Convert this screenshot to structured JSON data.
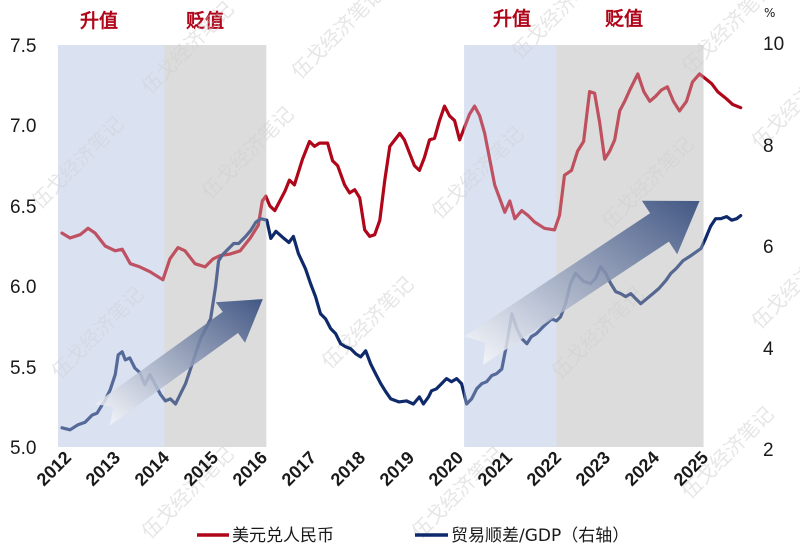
{
  "chart_data": {
    "type": "line",
    "title": "",
    "xlabel": "",
    "ylabel": "美元兑人民币",
    "ylabel_right": "贸易顺差/GDP（右轴）",
    "right_axis_unit": "%",
    "x_ticks": [
      "2012",
      "2013",
      "2014",
      "2015",
      "2016",
      "2017",
      "2018",
      "2019",
      "2020",
      "2021",
      "2022",
      "2023",
      "2024",
      "2025"
    ],
    "ylim": [
      5.0,
      7.5
    ],
    "y_ticks": [
      "7.5",
      "7.0",
      "6.5",
      "6.0",
      "5.5",
      "5.0"
    ],
    "ylim_right": [
      2,
      10
    ],
    "y_ticks_right": [
      "10",
      "8",
      "6",
      "4",
      "2"
    ],
    "grid": false,
    "legend_position": "bottom",
    "shaded_regions": [
      {
        "label": "升值",
        "start": 2011.92,
        "end": 2014.04,
        "color": "#dbe1f0"
      },
      {
        "label": "贬值",
        "start": 2014.04,
        "end": 2016.07,
        "color": "#dcdcdc"
      },
      {
        "label": "升值",
        "start": 2020.01,
        "end": 2021.85,
        "color": "#dbe1f0"
      },
      {
        "label": "贬值",
        "start": 2021.85,
        "end": 2024.78,
        "color": "#dcdcdc"
      }
    ],
    "annotations": [
      {
        "type": "arrow",
        "note": "upward trend arrow",
        "from": [
          2012.8,
          5.2
        ],
        "to": [
          2016.0,
          5.92
        ]
      },
      {
        "type": "arrow",
        "note": "upward trend arrow",
        "from": [
          2020.2,
          5.6
        ],
        "to": [
          2024.7,
          6.53
        ]
      }
    ],
    "series": [
      {
        "name": "美元兑人民币",
        "axis": "left",
        "color": "#b0061a",
        "points": [
          [
            2012.0,
            6.33
          ],
          [
            2012.16,
            6.3
          ],
          [
            2012.36,
            6.32
          ],
          [
            2012.52,
            6.36
          ],
          [
            2012.66,
            6.33
          ],
          [
            2012.86,
            6.25
          ],
          [
            2013.06,
            6.22
          ],
          [
            2013.2,
            6.23
          ],
          [
            2013.36,
            6.14
          ],
          [
            2013.55,
            6.12
          ],
          [
            2013.75,
            6.09
          ],
          [
            2014.01,
            6.04
          ],
          [
            2014.15,
            6.17
          ],
          [
            2014.31,
            6.24
          ],
          [
            2014.45,
            6.22
          ],
          [
            2014.65,
            6.14
          ],
          [
            2014.85,
            6.12
          ],
          [
            2015.01,
            6.17
          ],
          [
            2015.15,
            6.19
          ],
          [
            2015.35,
            6.2
          ],
          [
            2015.55,
            6.22
          ],
          [
            2015.75,
            6.3
          ],
          [
            2015.91,
            6.38
          ],
          [
            2015.99,
            6.53
          ],
          [
            2016.06,
            6.56
          ],
          [
            2016.14,
            6.5
          ],
          [
            2016.24,
            6.47
          ],
          [
            2016.44,
            6.59
          ],
          [
            2016.53,
            6.66
          ],
          [
            2016.63,
            6.63
          ],
          [
            2016.79,
            6.79
          ],
          [
            2016.93,
            6.9
          ],
          [
            2017.03,
            6.87
          ],
          [
            2017.13,
            6.89
          ],
          [
            2017.29,
            6.89
          ],
          [
            2017.39,
            6.78
          ],
          [
            2017.49,
            6.75
          ],
          [
            2017.63,
            6.63
          ],
          [
            2017.73,
            6.58
          ],
          [
            2017.83,
            6.6
          ],
          [
            2017.93,
            6.55
          ],
          [
            2018.03,
            6.35
          ],
          [
            2018.13,
            6.31
          ],
          [
            2018.23,
            6.32
          ],
          [
            2018.33,
            6.41
          ],
          [
            2018.43,
            6.66
          ],
          [
            2018.53,
            6.87
          ],
          [
            2018.63,
            6.91
          ],
          [
            2018.73,
            6.95
          ],
          [
            2018.82,
            6.91
          ],
          [
            2019.02,
            6.75
          ],
          [
            2019.12,
            6.72
          ],
          [
            2019.22,
            6.8
          ],
          [
            2019.32,
            6.91
          ],
          [
            2019.42,
            6.92
          ],
          [
            2019.52,
            7.03
          ],
          [
            2019.62,
            7.12
          ],
          [
            2019.72,
            7.06
          ],
          [
            2019.82,
            7.03
          ],
          [
            2019.92,
            6.91
          ],
          [
            2020.02,
            6.99
          ],
          [
            2020.12,
            7.07
          ],
          [
            2020.22,
            7.12
          ],
          [
            2020.32,
            7.06
          ],
          [
            2020.42,
            6.95
          ],
          [
            2020.52,
            6.79
          ],
          [
            2020.62,
            6.63
          ],
          [
            2020.82,
            6.46
          ],
          [
            2020.92,
            6.53
          ],
          [
            2021.02,
            6.42
          ],
          [
            2021.16,
            6.47
          ],
          [
            2021.28,
            6.44
          ],
          [
            2021.41,
            6.4
          ],
          [
            2021.61,
            6.36
          ],
          [
            2021.81,
            6.35
          ],
          [
            2021.91,
            6.44
          ],
          [
            2022.01,
            6.69
          ],
          [
            2022.15,
            6.72
          ],
          [
            2022.27,
            6.84
          ],
          [
            2022.39,
            6.9
          ],
          [
            2022.51,
            7.21
          ],
          [
            2022.61,
            7.2
          ],
          [
            2022.71,
            7.02
          ],
          [
            2022.81,
            6.79
          ],
          [
            2022.91,
            6.84
          ],
          [
            2023.01,
            6.91
          ],
          [
            2023.11,
            7.09
          ],
          [
            2023.21,
            7.15
          ],
          [
            2023.31,
            7.22
          ],
          [
            2023.47,
            7.32
          ],
          [
            2023.59,
            7.21
          ],
          [
            2023.71,
            7.15
          ],
          [
            2023.82,
            7.18
          ],
          [
            2023.94,
            7.22
          ],
          [
            2024.06,
            7.24
          ],
          [
            2024.18,
            7.15
          ],
          [
            2024.3,
            7.09
          ],
          [
            2024.44,
            7.15
          ],
          [
            2024.56,
            7.27
          ],
          [
            2024.7,
            7.32
          ],
          [
            2024.82,
            7.29
          ],
          [
            2024.94,
            7.26
          ],
          [
            2025.06,
            7.21
          ],
          [
            2025.22,
            7.17
          ],
          [
            2025.36,
            7.13
          ],
          [
            2025.52,
            7.11
          ]
        ]
      },
      {
        "name": "贸易顺差/GDP（右轴）",
        "axis": "right",
        "color": "#0f2a6b",
        "points": [
          [
            2012.0,
            2.4
          ],
          [
            2012.16,
            2.36
          ],
          [
            2012.32,
            2.46
          ],
          [
            2012.46,
            2.51
          ],
          [
            2012.6,
            2.65
          ],
          [
            2012.7,
            2.69
          ],
          [
            2012.86,
            2.95
          ],
          [
            2012.96,
            3.15
          ],
          [
            2013.06,
            3.45
          ],
          [
            2013.12,
            3.84
          ],
          [
            2013.2,
            3.9
          ],
          [
            2013.26,
            3.74
          ],
          [
            2013.35,
            3.78
          ],
          [
            2013.45,
            3.58
          ],
          [
            2013.55,
            3.49
          ],
          [
            2013.65,
            3.25
          ],
          [
            2013.75,
            3.45
          ],
          [
            2013.86,
            3.25
          ],
          [
            2013.96,
            3.06
          ],
          [
            2014.06,
            2.93
          ],
          [
            2014.16,
            2.97
          ],
          [
            2014.26,
            2.87
          ],
          [
            2014.36,
            3.07
          ],
          [
            2014.46,
            3.27
          ],
          [
            2014.56,
            3.56
          ],
          [
            2014.66,
            3.86
          ],
          [
            2014.76,
            4.16
          ],
          [
            2014.96,
            4.55
          ],
          [
            2015.06,
            5.19
          ],
          [
            2015.12,
            5.7
          ],
          [
            2015.2,
            5.82
          ],
          [
            2015.32,
            5.94
          ],
          [
            2015.42,
            6.04
          ],
          [
            2015.52,
            6.04
          ],
          [
            2015.66,
            6.18
          ],
          [
            2015.76,
            6.3
          ],
          [
            2015.86,
            6.46
          ],
          [
            2015.96,
            6.53
          ],
          [
            2016.08,
            6.5
          ],
          [
            2016.16,
            6.14
          ],
          [
            2016.26,
            6.28
          ],
          [
            2016.42,
            6.14
          ],
          [
            2016.52,
            6.06
          ],
          [
            2016.61,
            6.18
          ],
          [
            2016.71,
            5.84
          ],
          [
            2016.85,
            5.54
          ],
          [
            2016.95,
            5.25
          ],
          [
            2017.05,
            4.99
          ],
          [
            2017.15,
            4.65
          ],
          [
            2017.25,
            4.55
          ],
          [
            2017.35,
            4.36
          ],
          [
            2017.45,
            4.26
          ],
          [
            2017.55,
            4.06
          ],
          [
            2017.65,
            4.0
          ],
          [
            2017.75,
            3.96
          ],
          [
            2017.85,
            3.86
          ],
          [
            2017.95,
            3.8
          ],
          [
            2018.05,
            3.92
          ],
          [
            2018.15,
            3.66
          ],
          [
            2018.25,
            3.46
          ],
          [
            2018.35,
            3.27
          ],
          [
            2018.45,
            3.11
          ],
          [
            2018.55,
            2.97
          ],
          [
            2018.71,
            2.91
          ],
          [
            2018.86,
            2.93
          ],
          [
            2019.0,
            2.87
          ],
          [
            2019.12,
            3.01
          ],
          [
            2019.2,
            2.87
          ],
          [
            2019.3,
            3.01
          ],
          [
            2019.36,
            3.13
          ],
          [
            2019.46,
            3.17
          ],
          [
            2019.56,
            3.27
          ],
          [
            2019.66,
            3.37
          ],
          [
            2019.76,
            3.31
          ],
          [
            2019.86,
            3.37
          ],
          [
            2019.96,
            3.27
          ],
          [
            2020.06,
            2.87
          ],
          [
            2020.16,
            2.97
          ],
          [
            2020.26,
            3.17
          ],
          [
            2020.36,
            3.27
          ],
          [
            2020.46,
            3.31
          ],
          [
            2020.56,
            3.43
          ],
          [
            2020.66,
            3.47
          ],
          [
            2020.76,
            3.56
          ],
          [
            2020.86,
            4.06
          ],
          [
            2020.96,
            4.65
          ],
          [
            2021.06,
            4.36
          ],
          [
            2021.16,
            4.16
          ],
          [
            2021.26,
            4.06
          ],
          [
            2021.35,
            4.2
          ],
          [
            2021.45,
            4.26
          ],
          [
            2021.59,
            4.4
          ],
          [
            2021.75,
            4.55
          ],
          [
            2021.85,
            4.51
          ],
          [
            2021.93,
            4.59
          ],
          [
            2022.03,
            4.85
          ],
          [
            2022.13,
            5.25
          ],
          [
            2022.23,
            5.45
          ],
          [
            2022.39,
            5.29
          ],
          [
            2022.53,
            5.25
          ],
          [
            2022.63,
            5.35
          ],
          [
            2022.73,
            5.58
          ],
          [
            2022.83,
            5.45
          ],
          [
            2022.93,
            5.25
          ],
          [
            2023.03,
            5.09
          ],
          [
            2023.13,
            5.05
          ],
          [
            2023.23,
            4.99
          ],
          [
            2023.33,
            5.05
          ],
          [
            2023.43,
            4.95
          ],
          [
            2023.53,
            4.85
          ],
          [
            2023.65,
            4.95
          ],
          [
            2023.77,
            5.05
          ],
          [
            2023.89,
            5.15
          ],
          [
            2024.03,
            5.31
          ],
          [
            2024.13,
            5.45
          ],
          [
            2024.23,
            5.54
          ],
          [
            2024.37,
            5.7
          ],
          [
            2024.53,
            5.8
          ],
          [
            2024.73,
            5.94
          ],
          [
            2024.82,
            6.14
          ],
          [
            2024.92,
            6.38
          ],
          [
            2025.02,
            6.53
          ],
          [
            2025.12,
            6.53
          ],
          [
            2025.24,
            6.57
          ],
          [
            2025.34,
            6.5
          ],
          [
            2025.44,
            6.53
          ],
          [
            2025.52,
            6.59
          ]
        ]
      }
    ]
  },
  "bands": {
    "label_1": "升值",
    "label_2": "贬值",
    "label_3": "升值",
    "label_4": "贬值"
  },
  "axes": {
    "left_ticks": [
      "7.5",
      "7.0",
      "6.5",
      "6.0",
      "5.5",
      "5.0"
    ],
    "right_ticks": [
      "10",
      "8",
      "6",
      "4",
      "2"
    ],
    "right_unit": "%",
    "x_ticks": [
      "2012",
      "2013",
      "2014",
      "2015",
      "2016",
      "2017",
      "2018",
      "2019",
      "2020",
      "2021",
      "2022",
      "2023",
      "2024",
      "2025"
    ]
  },
  "legend": {
    "item_1": "美元兑人民币",
    "item_2": "贸易顺差/GDP（右轴）"
  },
  "watermark": "伍戈经济笔记",
  "colors": {
    "usd_cny": "#b0061a",
    "trade_gdp": "#0f2a6b",
    "appreciation_band": "#dbe1f0",
    "depreciation_band": "#dcdcdc",
    "band_label": "#b0061a"
  }
}
